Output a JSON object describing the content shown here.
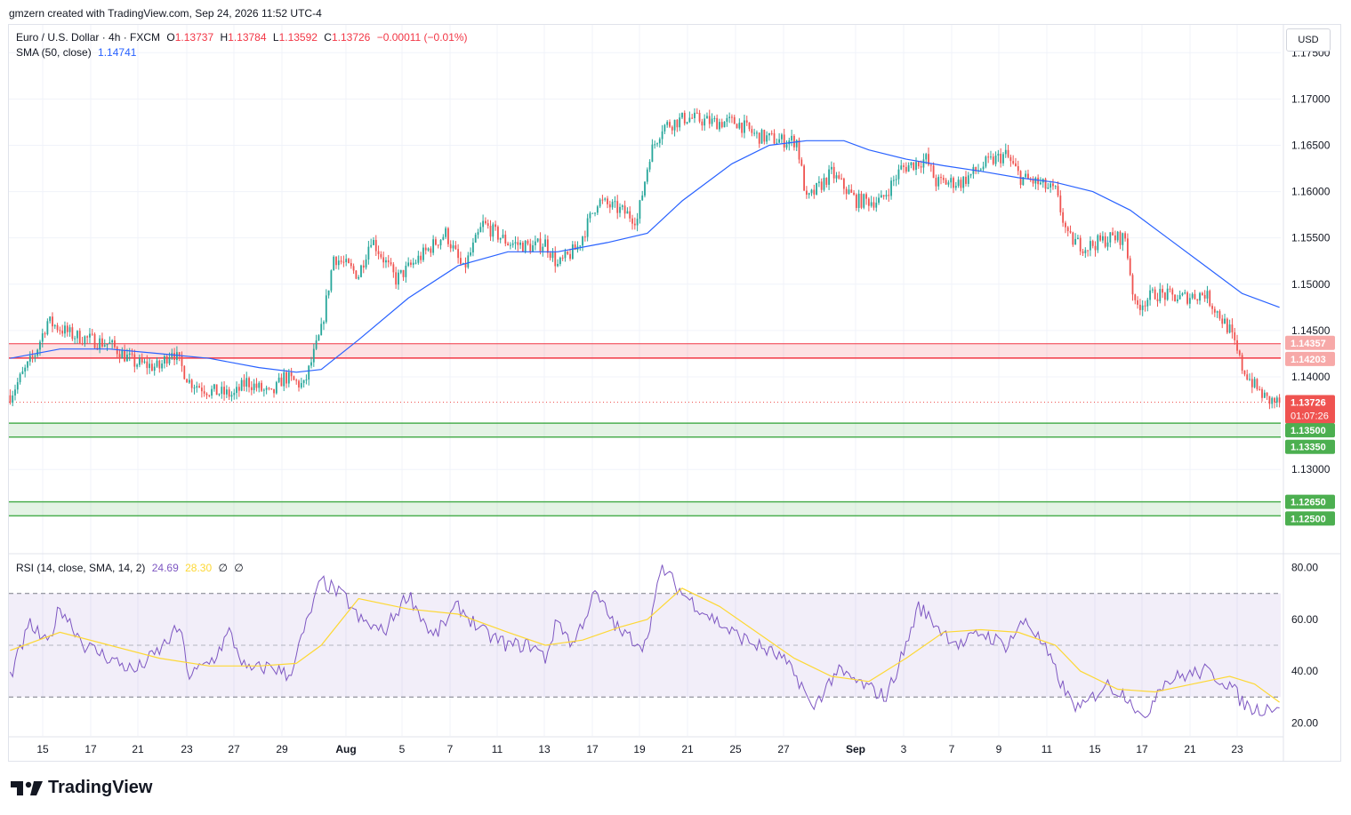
{
  "header": {
    "text": "gmzern created with TradingView.com, Sep 24, 2026 11:52 UTC-4"
  },
  "legend": {
    "symbol": "Euro / U.S. Dollar · 4h · FXCM",
    "o_label": "O",
    "o": "1.13737",
    "h_label": "H",
    "h": "1.13784",
    "l_label": "L",
    "l": "1.13592",
    "c_label": "C",
    "c": "1.13726",
    "change": "−0.00011 (−0.01%)",
    "sma_label": "SMA (50, close)",
    "sma_value": "1.14741",
    "rsi_label": "RSI (14, close, SMA, 14, 2)",
    "rsi_value": "24.69",
    "rsi_ma_value": "28.30",
    "rsi_extra1": "∅",
    "rsi_extra2": "∅"
  },
  "currency": "USD",
  "branding": {
    "logo_text": "TradingView"
  },
  "colors": {
    "up": "#26a69a",
    "down": "#ef5350",
    "sma": "#2962ff",
    "rsi": "#7e57c2",
    "rsi_ma": "#fdd835",
    "resistance": "#f23645",
    "support": "#4caf50"
  },
  "chart_data": [
    {
      "type": "candlestick",
      "ylim": [
        1.121,
        1.178
      ],
      "y_ticks": [
        "1.17500",
        "1.17000",
        "1.16500",
        "1.16000",
        "1.15500",
        "1.15000",
        "1.14500",
        "1.14000",
        "1.13500",
        "1.13000"
      ],
      "x_ticks": [
        "15",
        "17",
        "21",
        "23",
        "27",
        "29",
        "Aug",
        "5",
        "7",
        "11",
        "13",
        "17",
        "19",
        "21",
        "25",
        "27",
        "Sep",
        "3",
        "7",
        "9",
        "11",
        "15",
        "17",
        "21",
        "23"
      ],
      "last_price": "1.13726",
      "countdown": "01:07:26",
      "resistance_zone": {
        "top": "1.14357",
        "bottom": "1.14203"
      },
      "support_zones": [
        {
          "top": "1.13500",
          "bottom": "1.13350"
        },
        {
          "top": "1.12650",
          "bottom": "1.12500"
        }
      ],
      "close_path": [
        [
          0,
          1.138
        ],
        [
          10,
          1.1425
        ],
        [
          15,
          1.146
        ],
        [
          25,
          1.1445
        ],
        [
          40,
          1.1435
        ],
        [
          50,
          1.1415
        ],
        [
          60,
          1.141
        ],
        [
          65,
          1.143
        ],
        [
          72,
          1.1395
        ],
        [
          80,
          1.1385
        ],
        [
          90,
          1.138
        ],
        [
          95,
          1.1395
        ],
        [
          105,
          1.138
        ],
        [
          110,
          1.14
        ],
        [
          118,
          1.139
        ],
        [
          125,
          1.145
        ],
        [
          130,
          1.153
        ],
        [
          140,
          1.151
        ],
        [
          145,
          1.155
        ],
        [
          155,
          1.1505
        ],
        [
          165,
          1.153
        ],
        [
          175,
          1.1555
        ],
        [
          182,
          1.1515
        ],
        [
          190,
          1.1565
        ],
        [
          200,
          1.1545
        ],
        [
          210,
          1.154
        ],
        [
          215,
          1.1545
        ],
        [
          220,
          1.152
        ],
        [
          228,
          1.154
        ],
        [
          236,
          1.159
        ],
        [
          245,
          1.158
        ],
        [
          252,
          1.157
        ],
        [
          257,
          1.164
        ],
        [
          262,
          1.167
        ],
        [
          272,
          1.168
        ],
        [
          282,
          1.1675
        ],
        [
          292,
          1.1675
        ],
        [
          300,
          1.166
        ],
        [
          310,
          1.1655
        ],
        [
          316,
          1.1655
        ],
        [
          320,
          1.159
        ],
        [
          330,
          1.162
        ],
        [
          340,
          1.159
        ],
        [
          350,
          1.159
        ],
        [
          358,
          1.1625
        ],
        [
          368,
          1.1635
        ],
        [
          372,
          1.161
        ],
        [
          382,
          1.161
        ],
        [
          392,
          1.163
        ],
        [
          400,
          1.164
        ],
        [
          406,
          1.1615
        ],
        [
          412,
          1.161
        ],
        [
          420,
          1.16
        ],
        [
          425,
          1.155
        ],
        [
          432,
          1.154
        ],
        [
          442,
          1.155
        ],
        [
          448,
          1.155
        ],
        [
          452,
          1.1475
        ],
        [
          460,
          1.149
        ],
        [
          470,
          1.1485
        ],
        [
          480,
          1.149
        ],
        [
          485,
          1.147
        ],
        [
          490,
          1.145
        ],
        [
          495,
          1.141
        ],
        [
          500,
          1.139
        ],
        [
          505,
          1.1375
        ],
        [
          510,
          1.1372
        ]
      ],
      "sma_path": [
        [
          0,
          1.142
        ],
        [
          20,
          1.143
        ],
        [
          40,
          1.143
        ],
        [
          60,
          1.1425
        ],
        [
          80,
          1.142
        ],
        [
          100,
          1.141
        ],
        [
          115,
          1.1405
        ],
        [
          125,
          1.1408
        ],
        [
          140,
          1.144
        ],
        [
          160,
          1.1485
        ],
        [
          180,
          1.152
        ],
        [
          200,
          1.1535
        ],
        [
          220,
          1.1535
        ],
        [
          240,
          1.1545
        ],
        [
          256,
          1.1555
        ],
        [
          270,
          1.159
        ],
        [
          290,
          1.163
        ],
        [
          305,
          1.165
        ],
        [
          320,
          1.1655
        ],
        [
          335,
          1.1655
        ],
        [
          345,
          1.1645
        ],
        [
          360,
          1.1635
        ],
        [
          375,
          1.1628
        ],
        [
          390,
          1.1622
        ],
        [
          405,
          1.1615
        ],
        [
          420,
          1.161
        ],
        [
          435,
          1.16
        ],
        [
          450,
          1.158
        ],
        [
          465,
          1.155
        ],
        [
          480,
          1.152
        ],
        [
          495,
          1.149
        ],
        [
          510,
          1.1475
        ]
      ]
    },
    {
      "type": "line",
      "title": "RSI (14, close, SMA, 14, 2)",
      "ylim": [
        15,
        85
      ],
      "y_ticks": [
        "80.00",
        "60.00",
        "40.00",
        "20.00"
      ],
      "bands": {
        "upper": 70,
        "middle": 50,
        "lower": 30
      },
      "rsi_path": [
        [
          0,
          38
        ],
        [
          8,
          58
        ],
        [
          15,
          50
        ],
        [
          20,
          65
        ],
        [
          30,
          50
        ],
        [
          40,
          45
        ],
        [
          50,
          40
        ],
        [
          60,
          48
        ],
        [
          68,
          57
        ],
        [
          72,
          38
        ],
        [
          82,
          45
        ],
        [
          88,
          55
        ],
        [
          95,
          40
        ],
        [
          105,
          42
        ],
        [
          112,
          38
        ],
        [
          118,
          55
        ],
        [
          125,
          75
        ],
        [
          135,
          68
        ],
        [
          140,
          60
        ],
        [
          150,
          55
        ],
        [
          160,
          70
        ],
        [
          170,
          53
        ],
        [
          180,
          65
        ],
        [
          190,
          55
        ],
        [
          200,
          50
        ],
        [
          210,
          50
        ],
        [
          215,
          45
        ],
        [
          220,
          60
        ],
        [
          226,
          50
        ],
        [
          235,
          70
        ],
        [
          245,
          55
        ],
        [
          255,
          50
        ],
        [
          262,
          80
        ],
        [
          270,
          70
        ],
        [
          280,
          62
        ],
        [
          290,
          55
        ],
        [
          300,
          50
        ],
        [
          310,
          45
        ],
        [
          318,
          35
        ],
        [
          322,
          25
        ],
        [
          332,
          40
        ],
        [
          342,
          35
        ],
        [
          352,
          30
        ],
        [
          360,
          50
        ],
        [
          365,
          65
        ],
        [
          375,
          55
        ],
        [
          382,
          50
        ],
        [
          390,
          55
        ],
        [
          400,
          50
        ],
        [
          408,
          60
        ],
        [
          415,
          50
        ],
        [
          425,
          30
        ],
        [
          430,
          25
        ],
        [
          440,
          35
        ],
        [
          450,
          30
        ],
        [
          455,
          20
        ],
        [
          462,
          35
        ],
        [
          470,
          38
        ],
        [
          480,
          40
        ],
        [
          490,
          35
        ],
        [
          495,
          28
        ],
        [
          500,
          25
        ],
        [
          510,
          27
        ]
      ],
      "rsi_ma_path": [
        [
          0,
          48
        ],
        [
          20,
          55
        ],
        [
          40,
          50
        ],
        [
          60,
          45
        ],
        [
          80,
          42
        ],
        [
          100,
          42
        ],
        [
          115,
          43
        ],
        [
          125,
          50
        ],
        [
          140,
          68
        ],
        [
          160,
          64
        ],
        [
          180,
          62
        ],
        [
          200,
          55
        ],
        [
          215,
          50
        ],
        [
          230,
          52
        ],
        [
          245,
          57
        ],
        [
          256,
          60
        ],
        [
          270,
          72
        ],
        [
          285,
          65
        ],
        [
          300,
          55
        ],
        [
          315,
          45
        ],
        [
          330,
          38
        ],
        [
          345,
          36
        ],
        [
          360,
          45
        ],
        [
          375,
          55
        ],
        [
          390,
          56
        ],
        [
          405,
          55
        ],
        [
          420,
          50
        ],
        [
          430,
          40
        ],
        [
          445,
          33
        ],
        [
          460,
          32
        ],
        [
          475,
          35
        ],
        [
          490,
          38
        ],
        [
          500,
          35
        ],
        [
          510,
          28
        ]
      ]
    }
  ]
}
